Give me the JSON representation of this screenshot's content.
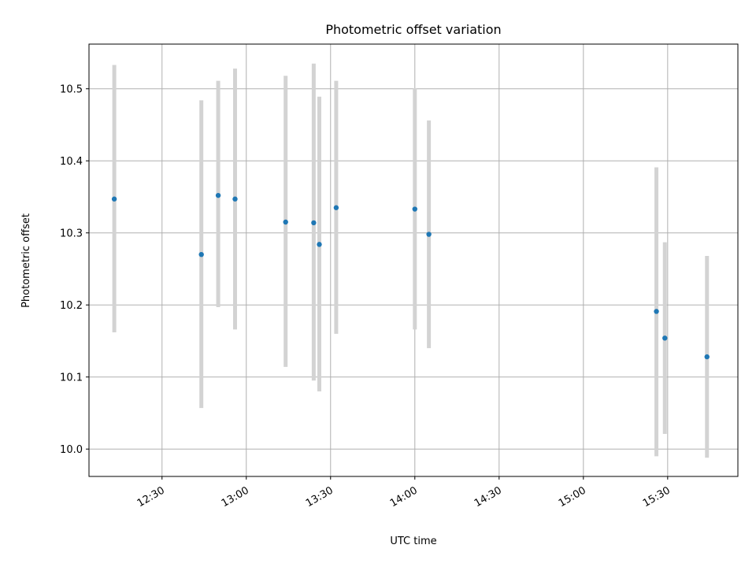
{
  "chart_data": {
    "type": "scatter",
    "title": "Photometric offset variation",
    "xlabel": "UTC time",
    "ylabel": "Photometric offset",
    "x_tick_labels": [
      "12:30",
      "13:00",
      "13:30",
      "14:00",
      "14:30",
      "15:00",
      "15:30"
    ],
    "y_tick_labels": [
      "10.0",
      "10.1",
      "10.2",
      "10.3",
      "10.4",
      "10.5"
    ],
    "x_ticks_hhmm": [
      "12:30",
      "13:00",
      "13:30",
      "14:00",
      "14:30",
      "15:00",
      "15:30"
    ],
    "y_ticks": [
      10.0,
      10.1,
      10.2,
      10.3,
      10.4,
      10.5
    ],
    "xlim": [
      "12:04",
      "15:55"
    ],
    "ylim": [
      9.962,
      10.562
    ],
    "grid": true,
    "colors": {
      "point": "#1f77b4",
      "errorbar": "#d3d3d3",
      "grid": "#b0b0b0"
    },
    "points": [
      {
        "time": "12:13",
        "y": 10.347,
        "yerr_low": 10.162,
        "yerr_high": 10.533
      },
      {
        "time": "12:44",
        "y": 10.27,
        "yerr_low": 10.057,
        "yerr_high": 10.484
      },
      {
        "time": "12:50",
        "y": 10.352,
        "yerr_low": 10.197,
        "yerr_high": 10.511
      },
      {
        "time": "12:56",
        "y": 10.347,
        "yerr_low": 10.166,
        "yerr_high": 10.528
      },
      {
        "time": "13:14",
        "y": 10.315,
        "yerr_low": 10.114,
        "yerr_high": 10.518
      },
      {
        "time": "13:24",
        "y": 10.314,
        "yerr_low": 10.095,
        "yerr_high": 10.535
      },
      {
        "time": "13:26",
        "y": 10.284,
        "yerr_low": 10.08,
        "yerr_high": 10.489
      },
      {
        "time": "13:32",
        "y": 10.335,
        "yerr_low": 10.16,
        "yerr_high": 10.511
      },
      {
        "time": "14:00",
        "y": 10.333,
        "yerr_low": 10.166,
        "yerr_high": 10.501
      },
      {
        "time": "14:05",
        "y": 10.298,
        "yerr_low": 10.14,
        "yerr_high": 10.456
      },
      {
        "time": "15:26",
        "y": 10.191,
        "yerr_low": 9.99,
        "yerr_high": 10.391
      },
      {
        "time": "15:29",
        "y": 10.154,
        "yerr_low": 10.021,
        "yerr_high": 10.287
      },
      {
        "time": "15:44",
        "y": 10.128,
        "yerr_low": 9.988,
        "yerr_high": 10.268
      }
    ]
  }
}
